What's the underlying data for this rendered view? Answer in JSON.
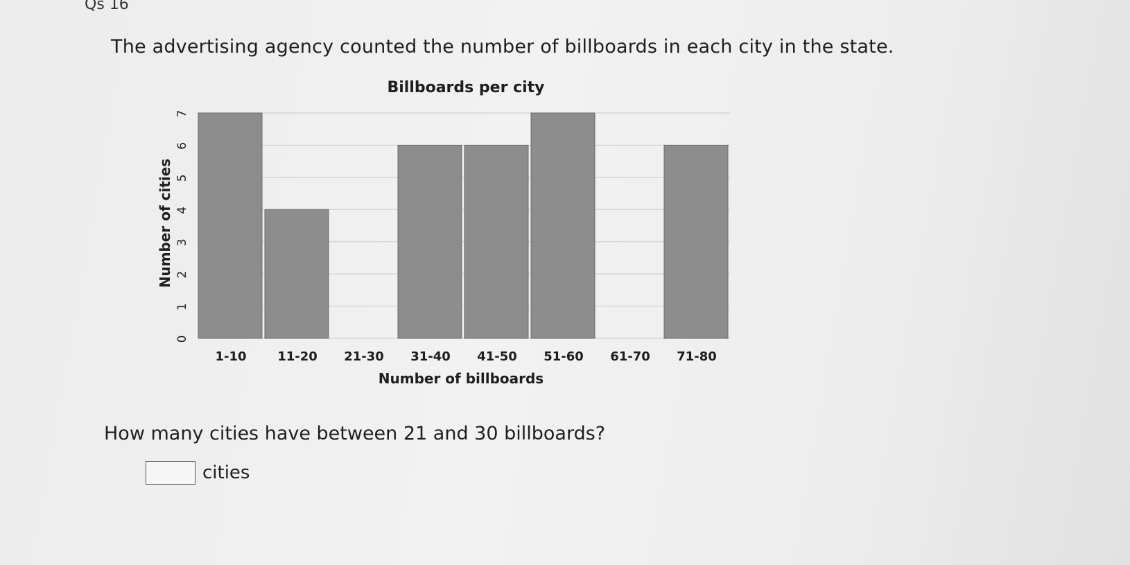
{
  "question_number": "Qs 16",
  "prompt": "The advertising agency counted the number of billboards in each city in the state.",
  "question": "How many cities have between 21 and 30 billboards?",
  "answer": {
    "value": "",
    "unit": "cities"
  },
  "chart_data": {
    "type": "bar",
    "title": "Billboards per city",
    "xlabel": "Number of billboards",
    "ylabel": "Number of cities",
    "categories": [
      "1-10",
      "11-20",
      "21-30",
      "31-40",
      "41-50",
      "51-60",
      "61-70",
      "71-80"
    ],
    "values": [
      7,
      4,
      0,
      6,
      6,
      7,
      0,
      6
    ],
    "ylim": [
      0,
      7
    ],
    "yticks": [
      0,
      1,
      2,
      3,
      4,
      5,
      6,
      7
    ],
    "grid": true,
    "colors": {
      "bar": "#8d8d8d"
    }
  }
}
